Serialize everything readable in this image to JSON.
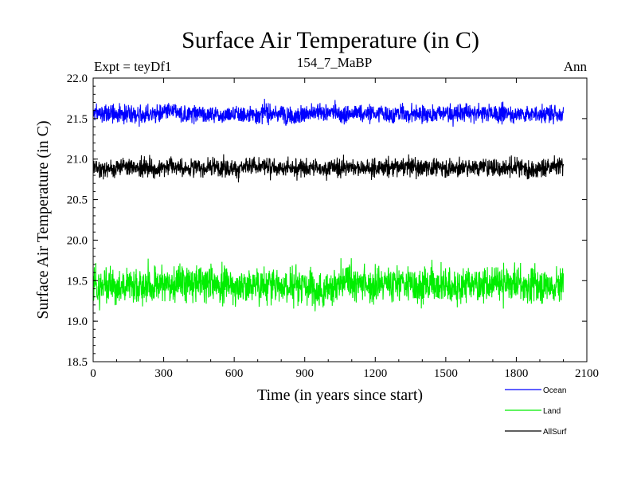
{
  "chart_data": {
    "type": "line",
    "title": "Surface Air Temperature (in C)",
    "subtitle_left": "Expt = teyDf1",
    "subtitle_center": "154_7_MaBP",
    "subtitle_right": "Ann",
    "xlabel": "Time (in years since start)",
    "ylabel": "Surface Air Temperature (in C)",
    "xlim": [
      0,
      2100
    ],
    "ylim": [
      18.5,
      22.0
    ],
    "x_ticks": [
      "0",
      "300",
      "600",
      "900",
      "1200",
      "1500",
      "1800",
      "2100"
    ],
    "y_ticks": [
      "18.5",
      "19.0",
      "19.5",
      "20.0",
      "20.5",
      "21.0",
      "21.5",
      "22.0"
    ],
    "x_start": 0,
    "x_end": 2000,
    "x_step": 1,
    "series": [
      {
        "name": "Ocean",
        "color": "#0000ff",
        "mean": 21.56,
        "amplitude": 0.1,
        "min": 21.28,
        "max": 21.76
      },
      {
        "name": "Land",
        "color": "#00ee00",
        "mean": 19.45,
        "amplitude": 0.2,
        "min": 18.92,
        "max": 19.95
      },
      {
        "name": "AllSurf",
        "color": "#000000",
        "mean": 20.9,
        "amplitude": 0.1,
        "min": 20.58,
        "max": 21.2
      }
    ],
    "legend_position": "bottom-right"
  }
}
